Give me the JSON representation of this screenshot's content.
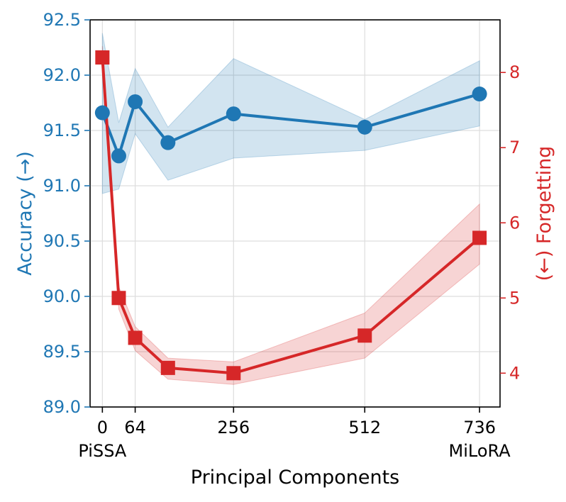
{
  "chart_data": {
    "type": "line",
    "xlabel": "Principal Components",
    "ylabel_left": "Accuracy (→)",
    "ylabel_right": "(←) Forgetting",
    "x_ticks": [
      {
        "value": 0,
        "label": "0",
        "sublabel": "PiSSA"
      },
      {
        "value": 64,
        "label": "64",
        "sublabel": ""
      },
      {
        "value": 256,
        "label": "256",
        "sublabel": ""
      },
      {
        "value": 512,
        "label": "512",
        "sublabel": ""
      },
      {
        "value": 736,
        "label": "736",
        "sublabel": "MiLoRA"
      }
    ],
    "xlim": [
      -24,
      776
    ],
    "y_left": {
      "lim": [
        89.0,
        92.5
      ],
      "ticks": [
        89.0,
        89.5,
        90.0,
        90.5,
        91.0,
        91.5,
        92.0,
        92.5
      ],
      "tick_labels": [
        "89.0",
        "89.5",
        "90.0",
        "90.5",
        "91.0",
        "91.5",
        "92.0",
        "92.5"
      ]
    },
    "y_right": {
      "lim": [
        3.55,
        8.7
      ],
      "ticks": [
        4,
        5,
        6,
        7,
        8
      ],
      "tick_labels": [
        "4",
        "5",
        "6",
        "7",
        "8"
      ]
    },
    "colors": {
      "accuracy": "#1f77b4",
      "forgetting": "#d62728",
      "grid": "#dddddd"
    },
    "series": [
      {
        "name": "Accuracy",
        "axis": "left",
        "marker": "circle",
        "x": [
          0,
          32,
          64,
          128,
          256,
          512,
          736
        ],
        "values": [
          91.66,
          91.27,
          91.76,
          91.39,
          91.65,
          91.53,
          91.83
        ],
        "lower": [
          90.93,
          90.97,
          91.47,
          91.05,
          91.25,
          91.32,
          91.54
        ],
        "upper": [
          92.38,
          91.57,
          92.06,
          91.53,
          92.15,
          91.6,
          92.13
        ]
      },
      {
        "name": "Forgetting",
        "axis": "right",
        "marker": "square",
        "x": [
          0,
          32,
          64,
          128,
          256,
          512,
          736
        ],
        "values": [
          8.2,
          5.0,
          4.47,
          4.07,
          4.0,
          4.5,
          5.8
        ],
        "lower": [
          8.0,
          4.85,
          4.3,
          3.92,
          3.85,
          4.2,
          5.45
        ],
        "upper": [
          8.35,
          5.15,
          4.62,
          4.2,
          4.15,
          4.8,
          6.25
        ]
      }
    ]
  }
}
